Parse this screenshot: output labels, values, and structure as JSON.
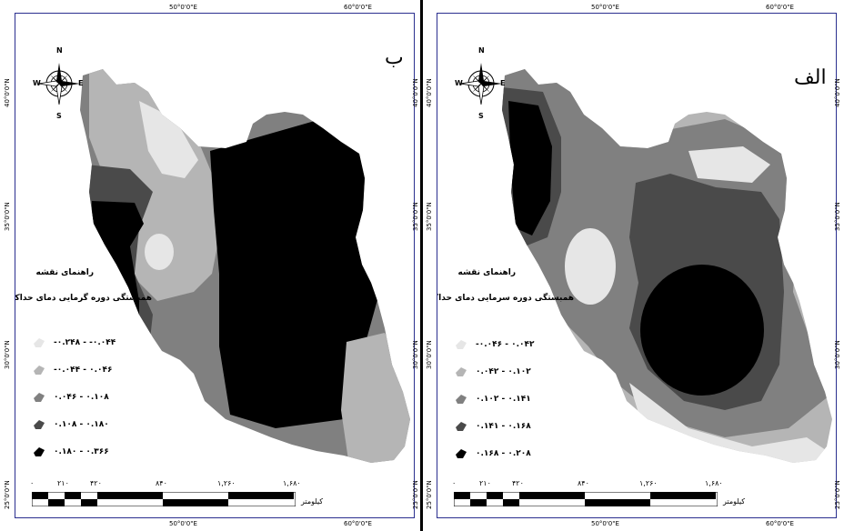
{
  "panels": [
    {
      "letter": "ب",
      "legend": {
        "heading": "راهنمای نقشه",
        "title": "همبستگی دوره گرمایی دمای حداکثر",
        "classes": [
          {
            "label": "-۰.۲۴۸ - -۰.۰۴۴",
            "color": "#e6e6e6"
          },
          {
            "label": "-۰.۰۴۴ - ۰.۰۴۶",
            "color": "#b5b5b5"
          },
          {
            "label": "۰.۰۴۶ - ۰.۱۰۸",
            "color": "#808080"
          },
          {
            "label": "۰.۱۰۸ - ۰.۱۸۰",
            "color": "#4a4a4a"
          },
          {
            "label": "۰.۱۸۰ - ۰.۳۶۶",
            "color": "#000000"
          }
        ]
      },
      "scale": {
        "ticks": [
          "۰",
          "۲۱۰",
          "۴۲۰",
          "۸۴۰",
          "۱,۲۶۰",
          "۱,۶۸۰"
        ],
        "unit": "کیلومتر"
      },
      "coords": {
        "top": [
          "50°0'0\"E",
          "60°0'0\"E"
        ],
        "bottom": [
          "50°0'0\"E",
          "60°0'0\"E"
        ],
        "left": [
          "40°0'0\"N",
          "35°0'0\"N",
          "30°0'0\"N",
          "25°0'0\"N"
        ],
        "right": [
          "40°0'0\"N",
          "35°0'0\"N",
          "30°0'0\"N",
          "25°0'0\"N"
        ]
      },
      "compass": {
        "n": "N",
        "s": "S",
        "e": "E",
        "w": "W"
      }
    },
    {
      "letter": "الف",
      "legend": {
        "heading": "راهنمای نقشه",
        "title": "همبستگی دوره سرمایی دمای حداکثر",
        "classes": [
          {
            "label": "-۰.۰۴۶ - ۰.۰۴۲",
            "color": "#e6e6e6"
          },
          {
            "label": "۰.۰۴۲ - ۰.۱۰۲",
            "color": "#b5b5b5"
          },
          {
            "label": "۰.۱۰۲ - ۰.۱۴۱",
            "color": "#808080"
          },
          {
            "label": "۰.۱۴۱ - ۰.۱۶۸",
            "color": "#4a4a4a"
          },
          {
            "label": "۰.۱۶۸ - ۰.۲۰۸",
            "color": "#000000"
          }
        ]
      },
      "scale": {
        "ticks": [
          "۰",
          "۲۱۰",
          "۴۲۰",
          "۸۴۰",
          "۱,۲۶۰",
          "۱,۶۸۰"
        ],
        "unit": "کیلومتر"
      },
      "coords": {
        "top": [
          "50°0'0\"E",
          "60°0'0\"E"
        ],
        "bottom": [
          "50°0'0\"E",
          "60°0'0\"E"
        ],
        "left": [
          "40°0'0\"N",
          "35°0'0\"N",
          "30°0'0\"N",
          "25°0'0\"N"
        ],
        "right": [
          "40°0'0\"N",
          "35°0'0\"N",
          "30°0'0\"N",
          "25°0'0\"N"
        ]
      },
      "compass": {
        "n": "N",
        "s": "S",
        "e": "E",
        "w": "W"
      }
    }
  ]
}
